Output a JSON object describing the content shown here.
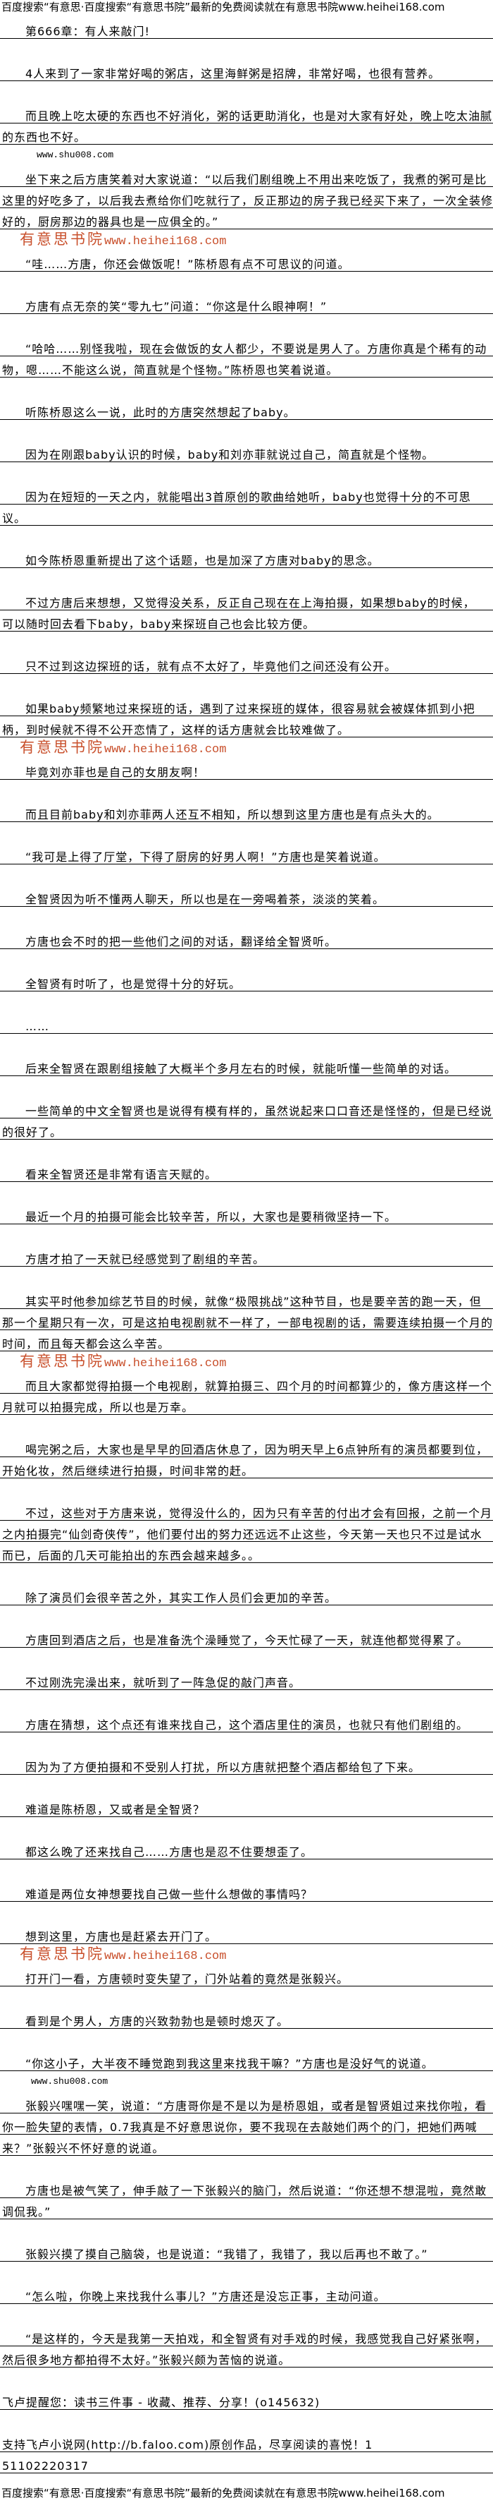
{
  "header": "百度搜索“有意思·百度搜索“有意思书院”最新的免费阅读就在有意思书院www.heihei168.com",
  "footer": "百度搜索“有意思·百度搜索“有意思书院”最新的免费阅读就在有意思书院www.heihei168.com",
  "title": "第666章：有人来敲门!",
  "watermark": {
    "brand": "有意思书院",
    "url": "www.heihei168.com",
    "color": "#c9502c"
  },
  "shu_mark": "www.shu008.com",
  "paragraphs": [
    {
      "lines": [
        "4人来到了一家非常好喝的粥店，这里海鲜粥是招牌，非常好喝，也很有营养。"
      ]
    },
    {
      "lines": [
        "而且晚上吃太硬的东西也不好消化，粥的话更助消化，也是对大家有好处，晚上吃太油腻",
        "的东西也不好。"
      ]
    },
    {
      "lines": [
        "坐下来之后方唐笑着对大家说道：“以后我们剧组晚上不用出来吃饭了，我煮的粥可是比",
        "这里的好吃多了，以后我去煮给你们吃就行了，反正那边的房子我已经买下来了，一次全装修",
        "好的，厨房那边的器具也是一应俱全的。”"
      ]
    },
    {
      "lines": [
        "“哇……方唐，你还会做饭呢！”陈桥恩有点不可思议的问道。"
      ]
    },
    {
      "lines": [
        "方唐有点无奈的笑“零九七”问道：“你这是什么眼神啊！”"
      ]
    },
    {
      "lines": [
        "“哈哈……别怪我啦，现在会做饭的女人都少，不要说是男人了。方唐你真是个稀有的动",
        "物，嗯……不能这么说，简直就是个怪物。”陈桥恩也笑着说道。"
      ]
    },
    {
      "lines": [
        "听陈桥恩这么一说，此时的方唐突然想起了baby。"
      ]
    },
    {
      "lines": [
        "因为在刚跟baby认识的时候，baby和刘亦菲就说过自己，简直就是个怪物。"
      ]
    },
    {
      "lines": [
        "因为在短短的一天之内，就能唱出3首原创的歌曲给她听，baby也觉得十分的不可思",
        "议。"
      ]
    },
    {
      "lines": [
        "如今陈桥恩重新提出了这个话题，也是加深了方唐对baby的思念。"
      ]
    },
    {
      "lines": [
        "不过方唐后来想想，又觉得没关系，反正自己现在在上海拍摄，如果想baby的时候，",
        "可以随时回去看下baby，baby来探班自己也会比较方便。"
      ]
    },
    {
      "lines": [
        "只不过到这边探班的话，就有点不太好了，毕竟他们之间还没有公开。"
      ]
    },
    {
      "lines": [
        "如果baby频繁地过来探班的话，遇到了过来探班的媒体，很容易就会被媒体抓到小把",
        "柄，到时候就不得不公开恋情了，这样的话方唐就会比较难做了。"
      ]
    },
    {
      "lines": [
        "毕竟刘亦菲也是自己的女朋友啊！"
      ]
    },
    {
      "lines": [
        "而且目前baby和刘亦菲两人还互不相知，所以想到这里方唐也是有点头大的。"
      ]
    },
    {
      "lines": [
        "“我可是上得了厅堂，下得了厨房的好男人啊！”方唐也是笑着说道。"
      ]
    },
    {
      "lines": [
        "全智贤因为听不懂两人聊天，所以也是在一旁喝着茶，淡淡的笑着。"
      ]
    },
    {
      "lines": [
        "方唐也会不时的把一些他们之间的对话，翻译给全智贤听。"
      ]
    },
    {
      "lines": [
        "全智贤有时听了，也是觉得十分的好玩。"
      ]
    },
    {
      "lines": [
        "……"
      ]
    },
    {
      "lines": [
        "后来全智贤在跟剧组接触了大概半个多月左右的时候，就能听懂一些简单的对话。"
      ]
    },
    {
      "lines": [
        "一些简单的中文全智贤也是说得有模有样的，虽然说起来口口音还是怪怪的，但是已经说",
        "的很好了。"
      ]
    },
    {
      "lines": [
        "看来全智贤还是非常有语言天赋的。"
      ]
    },
    {
      "lines": [
        "最近一个月的拍摄可能会比较辛苦，所以，大家也是要稍微坚持一下。"
      ]
    },
    {
      "lines": [
        "方唐才拍了一天就已经感觉到了剧组的辛苦。"
      ]
    },
    {
      "lines": [
        "其实平时他参加综艺节目的时候，就像“极限挑战”这种节目，也是要辛苦的跑一天，但",
        "那一个星期只有一次，可是这拍电视剧就不一样了，一部电视剧的话，需要连续拍摄一个月的",
        "时间，而且每天都会这么辛苦。"
      ]
    },
    {
      "lines": [
        "而且大家都觉得拍摄一个电视剧，就算拍摄三、四个月的时间都算少的，像方唐这样一个",
        "月就可以拍摄完成，所以也是万幸。"
      ]
    },
    {
      "lines": [
        "喝完粥之后，大家也是早早的回酒店休息了，因为明天早上6点钟所有的演员都要到位，",
        "开始化妆，然后继续进行拍摄，时间非常的赶。"
      ]
    },
    {
      "lines": [
        "不过，这些对于方唐来说，觉得没什么的，因为只有辛苦的付出才会有回报，之前一个月",
        "之内拍摄完“仙剑奇侠传”，他们要付出的努力还远远不止这些，今天第一天也只不过是试水",
        "而已，后面的几天可能拍出的东西会越来越多。。"
      ]
    },
    {
      "lines": [
        "除了演员们会很辛苦之外，其实工作人员们会更加的辛苦。"
      ]
    },
    {
      "lines": [
        "方唐回到酒店之后，也是准备洗个澡睡觉了，今天忙碌了一天，就连他都觉得累了。"
      ]
    },
    {
      "lines": [
        "不过刚洗完澡出来，就听到了一阵急促的敲门声音。"
      ]
    },
    {
      "lines": [
        "方唐在猜想，这个点还有谁来找自己，这个酒店里住的演员，也就只有他们剧组的。"
      ]
    },
    {
      "lines": [
        "因为为了方便拍摄和不受别人打扰，所以方唐就把整个酒店都给包了下来。"
      ]
    },
    {
      "lines": [
        "难道是陈桥恩，又或者是全智贤？"
      ]
    },
    {
      "lines": [
        "都这么晚了还来找自己……方唐也是忍不住要想歪了。"
      ]
    },
    {
      "lines": [
        "难道是两位女神想要找自己做一些什么想做的事情吗？"
      ]
    },
    {
      "lines": [
        "想到这里，方唐也是赶紧去开门了。"
      ]
    },
    {
      "lines": [
        "打开门一看，方唐顿时变失望了，门外站着的竟然是张毅兴。"
      ]
    },
    {
      "lines": [
        "看到是个男人，方唐的兴致勃勃也是顿时熄灭了。"
      ]
    },
    {
      "lines": [
        "“你这小子，大半夜不睡觉跑到我这里来找我干嘛？”方唐也是没好气的说道。"
      ]
    },
    {
      "lines": [
        "张毅兴嘿嘿一笑，说道：“方唐哥你是不是以为是桥恩姐，或者是智贤姐过来找你啦，看",
        "你一脸失望的表情，0.7我真是不好意思说你，要不我现在去敲她们两个的门，把她们两喊",
        "来？”张毅兴不怀好意的说道。"
      ]
    },
    {
      "lines": [
        "方唐也是被气笑了，伸手敲了一下张毅兴的脑门，然后说道：“你还想不想混啦，竟然敢",
        "调侃我。”"
      ]
    },
    {
      "lines": [
        "张毅兴摸了摸自己脑袋，也是说道：“我错了，我错了，我以后再也不敢了。”"
      ]
    },
    {
      "lines": [
        "“怎么啦，你晚上来找我什么事儿？”方唐还是没忘正事，主动问道。"
      ]
    },
    {
      "lines": [
        "“是这样的，今天是我第一天拍戏，和全智贤有对手戏的时候，我感觉我自己好紧张啊，",
        "然后很多地方都拍得不太好。”张毅兴颇为苦恼的说道。"
      ]
    }
  ],
  "notices": [
    {
      "lines": [
        "飞卢提醒您：读书三件事 - 收藏、推荐、分享！(o145632)"
      ]
    },
    {
      "lines": [
        "支持飞卢小说网(http://b.faloo.com)原创作品，尽享阅读的喜悦！1",
        "51102220317"
      ]
    }
  ]
}
